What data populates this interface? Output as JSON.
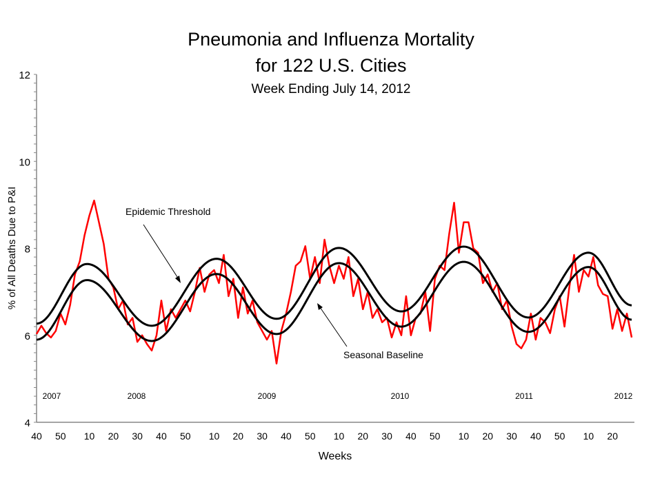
{
  "chart_data": {
    "type": "line",
    "title": "Pneumonia and Influenza Mortality",
    "title_line2": "for 122 U.S. Cities",
    "subtitle": "Week Ending July 14, 2012",
    "xlabel": "Weeks",
    "ylabel": "% of All Deaths Due to P&I",
    "ylim": [
      4,
      12
    ],
    "y_ticks": [
      4,
      6,
      8,
      10,
      12
    ],
    "y_minor_step": 0.2,
    "grid": false,
    "x_ticks": [
      {
        "label": "40",
        "week": "2007-40"
      },
      {
        "label": "50",
        "week": "2007-50"
      },
      {
        "label": "10",
        "week": "2008-10"
      },
      {
        "label": "20",
        "week": "2008-20"
      },
      {
        "label": "30",
        "week": "2008-30"
      },
      {
        "label": "40",
        "week": "2008-40"
      },
      {
        "label": "50",
        "week": "2008-50"
      },
      {
        "label": "10",
        "week": "2009-10"
      },
      {
        "label": "20",
        "week": "2009-20"
      },
      {
        "label": "30",
        "week": "2009-30"
      },
      {
        "label": "40",
        "week": "2009-40"
      },
      {
        "label": "50",
        "week": "2009-50"
      },
      {
        "label": "10",
        "week": "2010-10"
      },
      {
        "label": "20",
        "week": "2010-20"
      },
      {
        "label": "30",
        "week": "2010-30"
      },
      {
        "label": "40",
        "week": "2010-40"
      },
      {
        "label": "50",
        "week": "2010-50"
      },
      {
        "label": "10",
        "week": "2011-10"
      },
      {
        "label": "20",
        "week": "2011-20"
      },
      {
        "label": "30",
        "week": "2011-30"
      },
      {
        "label": "40",
        "week": "2011-40"
      },
      {
        "label": "50",
        "week": "2011-50"
      },
      {
        "label": "10",
        "week": "2012-10"
      },
      {
        "label": "20",
        "week": "2012-20"
      }
    ],
    "year_labels": [
      "2007",
      "2008",
      "2009",
      "2010",
      "2011",
      "2012"
    ],
    "annotations": {
      "threshold": "Epidemic Threshold",
      "baseline": "Seasonal Baseline"
    },
    "colors": {
      "observed": "#ff0000",
      "baseline": "#000000",
      "threshold": "#000000"
    },
    "series": [
      {
        "key": "observed",
        "weeks": [
          "2007-40",
          "2007-42",
          "2007-44",
          "2007-46",
          "2007-48",
          "2007-50",
          "2007-52",
          "2008-02",
          "2008-04",
          "2008-06",
          "2008-08",
          "2008-10",
          "2008-12",
          "2008-14",
          "2008-16",
          "2008-18",
          "2008-20",
          "2008-22",
          "2008-24",
          "2008-26",
          "2008-28",
          "2008-30",
          "2008-32",
          "2008-34",
          "2008-36",
          "2008-38",
          "2008-40",
          "2008-42",
          "2008-44",
          "2008-46",
          "2008-48",
          "2008-50",
          "2008-52",
          "2009-02",
          "2009-04",
          "2009-06",
          "2009-08",
          "2009-10",
          "2009-12",
          "2009-14",
          "2009-16",
          "2009-18",
          "2009-20",
          "2009-22",
          "2009-24",
          "2009-26",
          "2009-28",
          "2009-30",
          "2009-32",
          "2009-34",
          "2009-36",
          "2009-38",
          "2009-40",
          "2009-42",
          "2009-44",
          "2009-46",
          "2009-48",
          "2009-50",
          "2009-52",
          "2010-02",
          "2010-04",
          "2010-06",
          "2010-08",
          "2010-10",
          "2010-12",
          "2010-14",
          "2010-16",
          "2010-18",
          "2010-20",
          "2010-22",
          "2010-24",
          "2010-26",
          "2010-28",
          "2010-30",
          "2010-32",
          "2010-34",
          "2010-36",
          "2010-38",
          "2010-40",
          "2010-42",
          "2010-44",
          "2010-46",
          "2010-48",
          "2010-50",
          "2010-52",
          "2011-02",
          "2011-04",
          "2011-06",
          "2011-08",
          "2011-10",
          "2011-12",
          "2011-14",
          "2011-16",
          "2011-18",
          "2011-20",
          "2011-22",
          "2011-24",
          "2011-26",
          "2011-28",
          "2011-30",
          "2011-32",
          "2011-34",
          "2011-36",
          "2011-38",
          "2011-40",
          "2011-42",
          "2011-44",
          "2011-46",
          "2011-48",
          "2011-50",
          "2011-52",
          "2012-02",
          "2012-04",
          "2012-06",
          "2012-08",
          "2012-10",
          "2012-12",
          "2012-14",
          "2012-16",
          "2012-18",
          "2012-20",
          "2012-22",
          "2012-24",
          "2012-26",
          "2012-28"
        ],
        "values": [
          6.03,
          6.22,
          6.05,
          5.95,
          6.1,
          6.5,
          6.25,
          6.7,
          7.4,
          7.7,
          8.3,
          8.75,
          9.1,
          8.6,
          8.1,
          7.3,
          7.1,
          6.6,
          6.8,
          6.25,
          6.4,
          5.85,
          6.0,
          5.8,
          5.65,
          6.0,
          6.8,
          6.1,
          6.6,
          6.4,
          6.6,
          6.8,
          6.55,
          7.0,
          7.55,
          7.0,
          7.4,
          7.5,
          7.2,
          7.85,
          6.9,
          7.3,
          6.4,
          7.1,
          6.5,
          6.8,
          6.3,
          6.1,
          5.9,
          6.1,
          5.35,
          6.1,
          6.5,
          7.0,
          7.6,
          7.7,
          8.05,
          7.3,
          7.8,
          7.2,
          8.2,
          7.6,
          7.2,
          7.6,
          7.3,
          7.8,
          6.9,
          7.3,
          6.6,
          7.0,
          6.4,
          6.6,
          6.3,
          6.4,
          5.95,
          6.3,
          6.0,
          6.9,
          6.0,
          6.4,
          6.5,
          7.0,
          6.1,
          7.3,
          7.6,
          7.5,
          8.35,
          9.05,
          7.9,
          8.6,
          8.6,
          8.0,
          7.9,
          7.2,
          7.4,
          7.0,
          7.2,
          6.6,
          6.8,
          6.2,
          5.8,
          5.7,
          5.9,
          6.5,
          5.9,
          6.4,
          6.3,
          6.05,
          6.6,
          6.9,
          6.2,
          7.1,
          7.85,
          7.0,
          7.5,
          7.35,
          7.8,
          7.15,
          6.95,
          6.9,
          6.15,
          6.6,
          6.1,
          6.5,
          5.95
        ]
      },
      {
        "key": "threshold",
        "extrema": [
          [
            "2007-40",
            6.27
          ],
          [
            "2008-09",
            7.64
          ],
          [
            "2008-36",
            6.22
          ],
          [
            "2009-11",
            7.76
          ],
          [
            "2009-36",
            6.38
          ],
          [
            "2010-10",
            8.01
          ],
          [
            "2010-36",
            6.55
          ],
          [
            "2011-10",
            8.04
          ],
          [
            "2011-37",
            6.41
          ],
          [
            "2012-10",
            7.9
          ],
          [
            "2012-28",
            6.69
          ]
        ]
      },
      {
        "key": "baseline",
        "extrema": [
          [
            "2007-40",
            5.9
          ],
          [
            "2008-09",
            7.27
          ],
          [
            "2008-36",
            5.87
          ],
          [
            "2009-11",
            7.41
          ],
          [
            "2009-36",
            6.03
          ],
          [
            "2010-10",
            7.66
          ],
          [
            "2010-36",
            6.2
          ],
          [
            "2011-10",
            7.69
          ],
          [
            "2011-37",
            6.08
          ],
          [
            "2012-10",
            7.57
          ],
          [
            "2012-28",
            6.36
          ]
        ]
      }
    ]
  }
}
